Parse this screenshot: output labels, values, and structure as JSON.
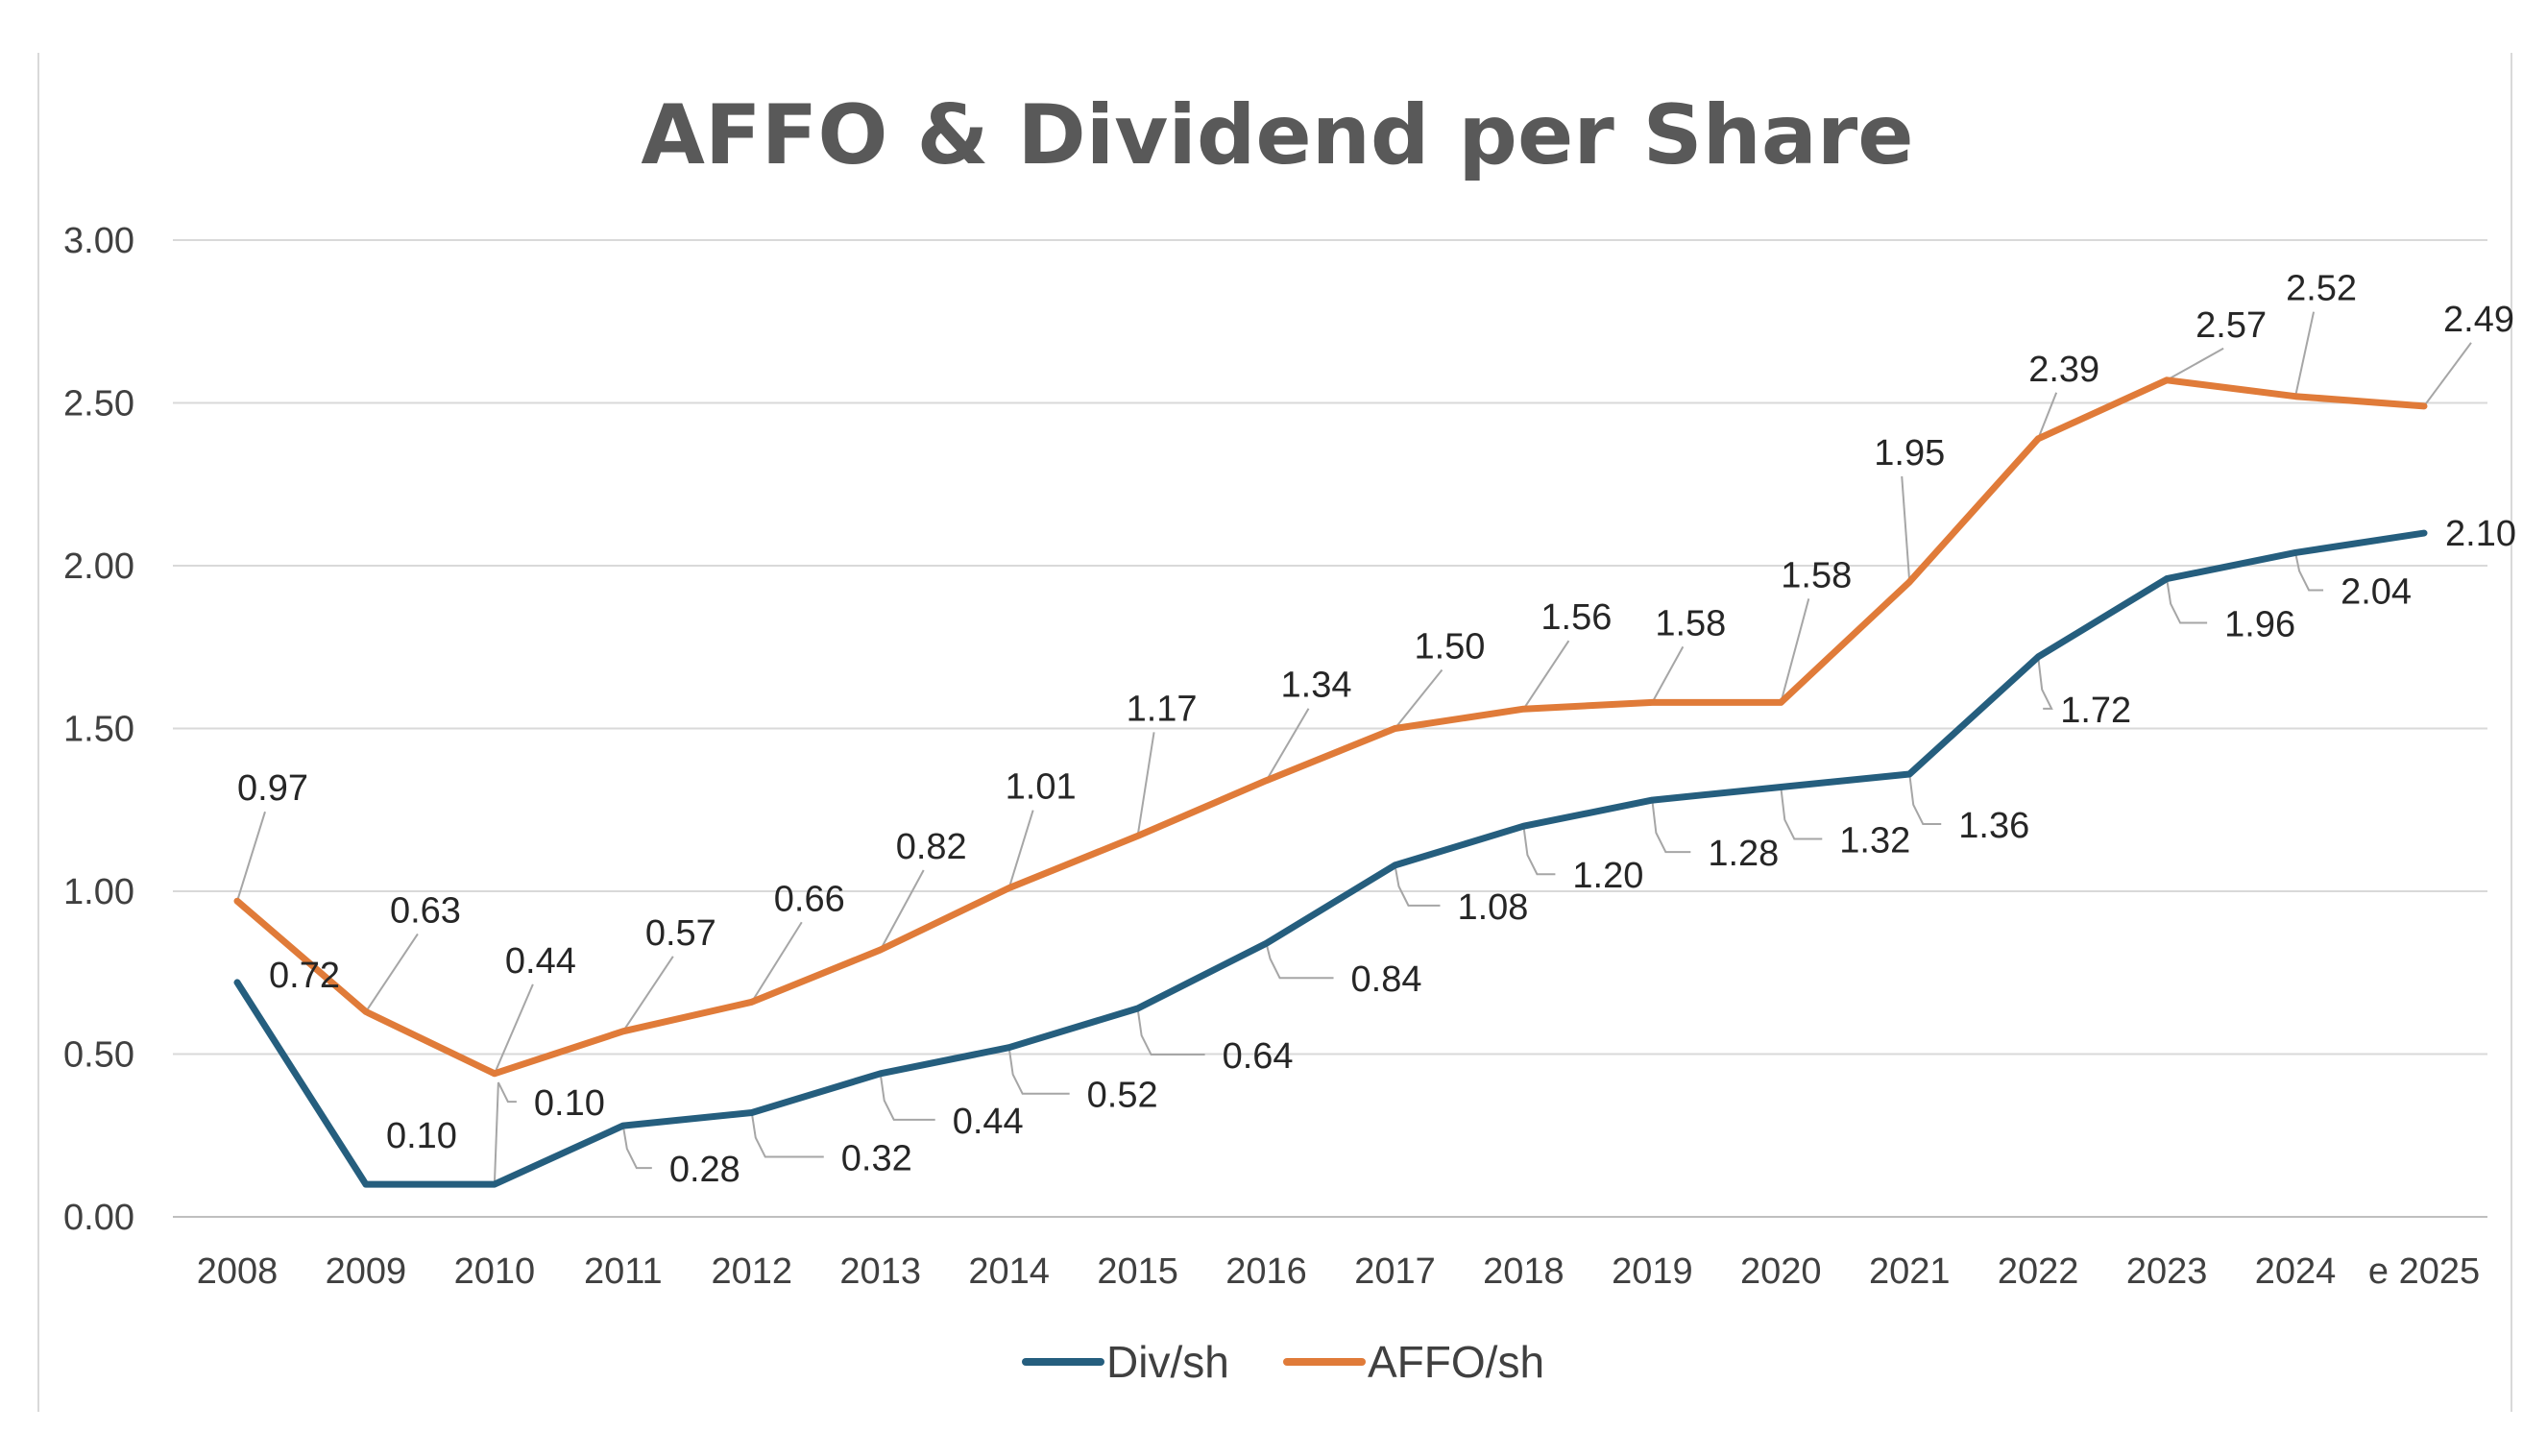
{
  "chart_data": {
    "type": "line",
    "title": "AFFO & Dividend per Share",
    "xlabel": "",
    "ylabel": "",
    "categories": [
      "2008",
      "2009",
      "2010",
      "2011",
      "2012",
      "2013",
      "2014",
      "2015",
      "2016",
      "2017",
      "2018",
      "2019",
      "2020",
      "2021",
      "2022",
      "2023",
      "2024",
      "e 2025"
    ],
    "ylim": [
      0,
      3
    ],
    "y_ticks": [
      "0.00",
      "0.50",
      "1.00",
      "1.50",
      "2.00",
      "2.50",
      "3.00"
    ],
    "grid": true,
    "legend_position": "bottom",
    "series": [
      {
        "name": "Div/sh",
        "color": "#255E7E",
        "values": [
          0.72,
          0.1,
          0.1,
          0.28,
          0.32,
          0.44,
          0.52,
          0.64,
          0.84,
          1.08,
          1.2,
          1.28,
          1.32,
          1.36,
          1.72,
          1.96,
          2.04,
          2.1
        ],
        "labels": [
          "0.72",
          "0.10",
          "0.10",
          "0.28",
          "0.32",
          "0.44",
          "0.52",
          "0.64",
          "0.84",
          "1.08",
          "1.20",
          "1.28",
          "1.32",
          "1.36",
          "1.72",
          "1.96",
          "2.04",
          "2.10"
        ]
      },
      {
        "name": "AFFO/sh",
        "color": "#E07B39",
        "values": [
          0.97,
          0.63,
          0.44,
          0.57,
          0.66,
          0.82,
          1.01,
          1.17,
          1.34,
          1.5,
          1.56,
          1.58,
          1.58,
          1.95,
          2.39,
          2.57,
          2.52,
          2.49
        ],
        "labels": [
          "0.97",
          "0.63",
          "0.44",
          "0.57",
          "0.66",
          "0.82",
          "1.01",
          "1.17",
          "1.34",
          "1.50",
          "1.56",
          "1.58",
          "1.58",
          "1.95",
          "2.39",
          "2.57",
          "2.52",
          "2.49"
        ]
      }
    ]
  }
}
